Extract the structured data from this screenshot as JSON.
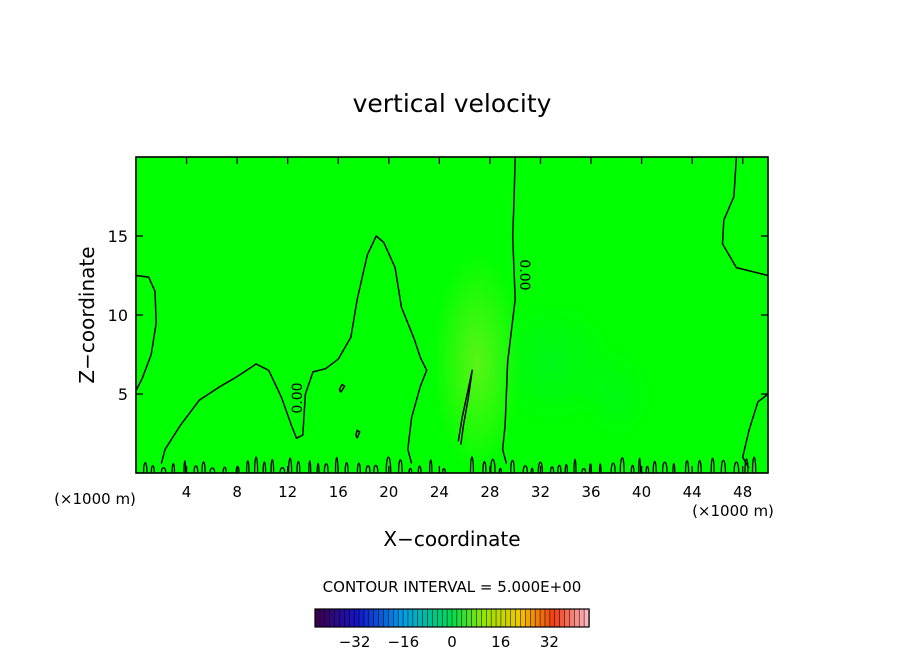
{
  "chart_data": {
    "type": "heatmap",
    "title": "vertical velocity",
    "xlabel": "X−coordinate",
    "ylabel": "Z−coordinate",
    "x_unit_left": "(×1000 m)",
    "x_unit_right": "(×1000 m)",
    "xlim": [
      0,
      50
    ],
    "ylim": [
      0,
      20
    ],
    "x_ticks": [
      4,
      8,
      12,
      16,
      20,
      24,
      28,
      32,
      36,
      40,
      44,
      48
    ],
    "y_ticks": [
      5,
      10,
      15
    ],
    "contour_label": "0.00",
    "contour_interval_text": "CONTOUR INTERVAL = 5.000E+00",
    "colorbar": {
      "min": -45,
      "max": 45,
      "ticks": [
        -32,
        -16,
        0,
        16,
        32
      ]
    },
    "background_field_color": "#00ff00",
    "updraft_regions": [
      {
        "x": 27,
        "z": 7,
        "rx": 3.5,
        "rz": 7,
        "strength": 0.45
      },
      {
        "x": 33,
        "z": 7,
        "rx": 5,
        "rz": 4,
        "strength": 0.2
      },
      {
        "x": 38,
        "z": 5,
        "rx": 3,
        "rz": 3,
        "strength": 0.15
      }
    ],
    "contours": [
      {
        "name": "zero-contour-left-edge",
        "points": [
          [
            0,
            12.5
          ],
          [
            1,
            12.4
          ],
          [
            1.5,
            11.5
          ],
          [
            1.6,
            9.5
          ],
          [
            1.2,
            7.5
          ],
          [
            0.5,
            6
          ],
          [
            0,
            5.2
          ]
        ]
      },
      {
        "name": "zero-contour-main",
        "points": [
          [
            2,
            0.6
          ],
          [
            2.3,
            1.5
          ],
          [
            3.5,
            3
          ],
          [
            5,
            4.6
          ],
          [
            6.5,
            5.4
          ],
          [
            8,
            6.1
          ],
          [
            9.5,
            6.9
          ],
          [
            10.5,
            6.5
          ],
          [
            11.5,
            4.8
          ],
          [
            12.3,
            3
          ],
          [
            12.7,
            2.2
          ],
          [
            13.2,
            2.4
          ],
          [
            13.4,
            5
          ],
          [
            14,
            6.4
          ],
          [
            15,
            6.6
          ],
          [
            16,
            7.2
          ],
          [
            17,
            8.6
          ],
          [
            17.5,
            11
          ],
          [
            18.3,
            13.8
          ],
          [
            19,
            15
          ],
          [
            19.6,
            14.6
          ],
          [
            20.5,
            13
          ],
          [
            21,
            10.5
          ],
          [
            22,
            8.5
          ],
          [
            22.5,
            7.3
          ],
          [
            23,
            6.5
          ],
          [
            22.5,
            5.5
          ],
          [
            21.8,
            3.5
          ],
          [
            21.5,
            1.5
          ],
          [
            21.8,
            0.6
          ]
        ]
      },
      {
        "name": "zero-contour-updraft",
        "points": [
          [
            25.5,
            2
          ],
          [
            25.8,
            3.5
          ],
          [
            26.2,
            5
          ],
          [
            26.6,
            6.5
          ],
          [
            26.3,
            4.8
          ],
          [
            25.9,
            3
          ],
          [
            25.7,
            1.8
          ]
        ]
      },
      {
        "name": "zero-contour-vertical",
        "points": [
          [
            30,
            20
          ],
          [
            29.9,
            17
          ],
          [
            29.8,
            15
          ],
          [
            29.9,
            13
          ],
          [
            30,
            11
          ],
          [
            29.7,
            9
          ],
          [
            29.4,
            7
          ],
          [
            29.3,
            5
          ],
          [
            29.2,
            3
          ],
          [
            29,
            1.5
          ],
          [
            29.3,
            0.6
          ]
        ]
      },
      {
        "name": "zero-contour-right-top",
        "points": [
          [
            47.5,
            20
          ],
          [
            47.3,
            17.5
          ],
          [
            46.5,
            16
          ],
          [
            46.4,
            14.5
          ],
          [
            47.5,
            13
          ],
          [
            50,
            12.5
          ]
        ]
      },
      {
        "name": "zero-contour-right-bottom",
        "points": [
          [
            50,
            5
          ],
          [
            49.2,
            4.5
          ],
          [
            48.5,
            2.7
          ],
          [
            48,
            1
          ],
          [
            48.5,
            0.3
          ]
        ]
      },
      {
        "name": "zero-contour-dot",
        "points": [
          [
            16.2,
            5.1
          ],
          [
            16.5,
            5.5
          ],
          [
            16.3,
            5.6
          ],
          [
            16.1,
            5.3
          ],
          [
            16.2,
            5.1
          ]
        ]
      },
      {
        "name": "zero-contour-dot-2",
        "points": [
          [
            17.5,
            2.2
          ],
          [
            17.7,
            2.6
          ],
          [
            17.5,
            2.7
          ],
          [
            17.4,
            2.4
          ],
          [
            17.5,
            2.2
          ]
        ]
      }
    ]
  }
}
